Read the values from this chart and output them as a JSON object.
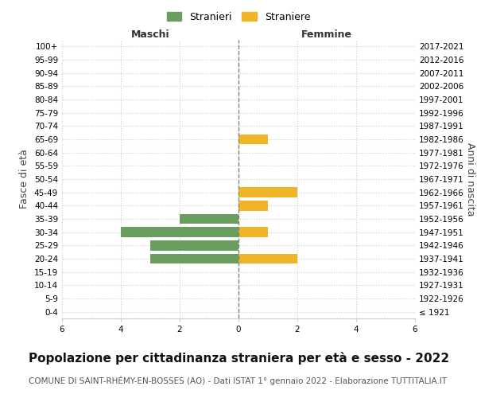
{
  "age_groups": [
    "100+",
    "95-99",
    "90-94",
    "85-89",
    "80-84",
    "75-79",
    "70-74",
    "65-69",
    "60-64",
    "55-59",
    "50-54",
    "45-49",
    "40-44",
    "35-39",
    "30-34",
    "25-29",
    "20-24",
    "15-19",
    "10-14",
    "5-9",
    "0-4"
  ],
  "birth_years": [
    "≤ 1921",
    "1922-1926",
    "1927-1931",
    "1932-1936",
    "1937-1941",
    "1942-1946",
    "1947-1951",
    "1952-1956",
    "1957-1961",
    "1962-1966",
    "1967-1971",
    "1972-1976",
    "1977-1981",
    "1982-1986",
    "1987-1991",
    "1992-1996",
    "1997-2001",
    "2002-2006",
    "2007-2011",
    "2012-2016",
    "2017-2021"
  ],
  "maschi": [
    0,
    0,
    0,
    0,
    0,
    0,
    0,
    0,
    0,
    0,
    0,
    0,
    0,
    2,
    4,
    3,
    3,
    0,
    0,
    0,
    0
  ],
  "femmine": [
    0,
    0,
    0,
    0,
    0,
    0,
    0,
    1,
    0,
    0,
    0,
    2,
    1,
    0,
    1,
    0,
    2,
    0,
    0,
    0,
    0
  ],
  "maschi_color": "#6a9e5e",
  "femmine_color": "#f0b429",
  "title": "Popolazione per cittadinanza straniera per età e sesso - 2022",
  "subtitle": "COMUNE DI SAINT-RHÉMY-EN-BOSSES (AO) - Dati ISTAT 1° gennaio 2022 - Elaborazione TUTTITALIA.IT",
  "ylabel_left": "Fasce di età",
  "ylabel_right": "Anni di nascita",
  "xlabel_left": "Maschi",
  "xlabel_right": "Femmine",
  "legend_maschi": "Stranieri",
  "legend_femmine": "Straniere",
  "xlim": 6,
  "background_color": "#ffffff",
  "grid_color": "#cccccc",
  "zero_line_color": "#888866",
  "bar_height": 0.75,
  "title_fontsize": 11,
  "subtitle_fontsize": 7.5,
  "axis_label_fontsize": 9,
  "tick_fontsize": 7.5
}
